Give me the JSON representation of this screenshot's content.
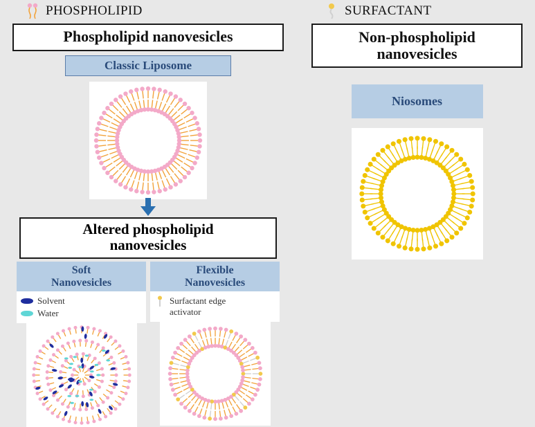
{
  "left": {
    "header_title": "PHOSPHOLIPID",
    "main_box": "Phospholipid nanovesicles",
    "classic_label": "Classic Liposome",
    "altered_box_line1": "Altered phospholipid",
    "altered_box_line2": "nanovesicles",
    "soft": {
      "title_line1": "Soft",
      "title_line2": "Nanovesicles",
      "legend_solvent": "Solvent",
      "legend_water": "Water"
    },
    "flex": {
      "title_line1": "Flexible",
      "title_line2": "Nanovesicles",
      "legend_sea_line1": "Surfactant edge",
      "legend_sea_line2": "activator"
    }
  },
  "right": {
    "header_title": "SURFACTANT",
    "main_box_line1": "Non-phospholipid",
    "main_box_line2": "nanovesicles",
    "niosomes_label": "Niosomes"
  },
  "style": {
    "bg": "#e8e8e8",
    "box_border": "#1a1a1a",
    "sub_bg": "#b6cde4",
    "sub_text": "#2a4b7a",
    "arrow": "#2a6fb0",
    "phospho_head": "#f3a9c8",
    "phospho_tail": "#f2a23a",
    "surf_head": "#f0c400",
    "surf_tail": "#f0c400",
    "solvent_color": "#1f2e9e",
    "water_color": "#5fd6d6",
    "sea_head": "#f2c94c",
    "sea_tail": "#d0d0d0"
  },
  "vesicles": {
    "liposome": {
      "outer_r": 75,
      "inner_r": 45,
      "tail_len": 14,
      "n": 56
    },
    "niosome": {
      "outer_r": 82,
      "inner_r": 54,
      "tail_len": 16,
      "n": 56
    },
    "soft": {
      "shells": [
        72,
        52,
        32,
        14
      ],
      "tail_len": 9,
      "n": 48,
      "solvent_dots": 28,
      "water_dots": 18
    },
    "flexible": {
      "outer_r": 68,
      "inner_r": 42,
      "tail_len": 12,
      "n": 52,
      "sea_every": 7
    }
  }
}
